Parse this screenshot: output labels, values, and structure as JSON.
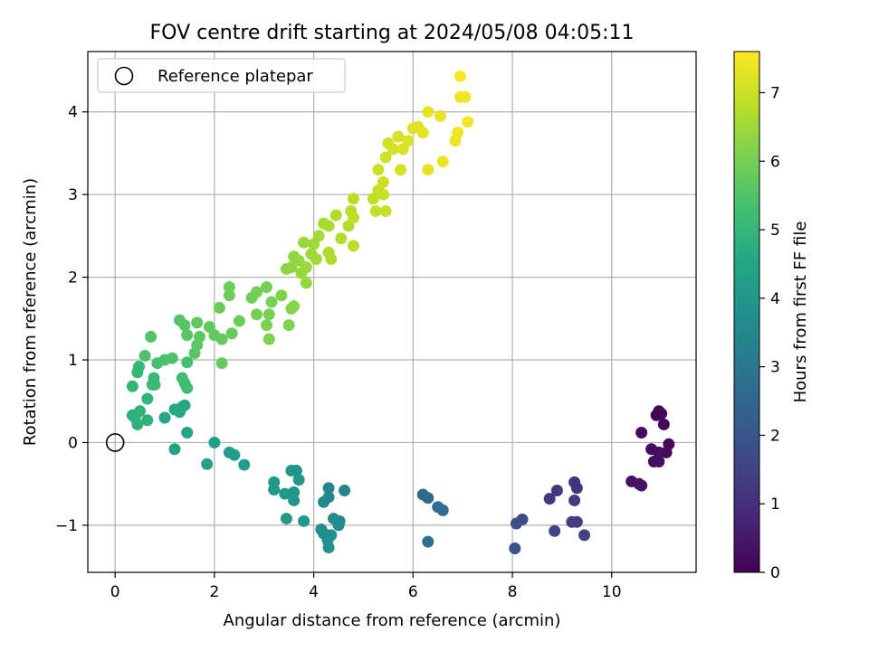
{
  "chart_data": {
    "type": "scatter",
    "title": "FOV centre drift starting at 2024/05/08 04:05:11",
    "xlabel": "Angular distance from reference (arcmin)",
    "ylabel": "Rotation from reference (arcmin)",
    "xlim": [
      -0.55,
      11.7
    ],
    "ylim": [
      -1.57,
      4.73
    ],
    "xticks": [
      0,
      2,
      4,
      6,
      8,
      10
    ],
    "yticks": [
      -1,
      0,
      1,
      2,
      3,
      4
    ],
    "grid": true,
    "legend": {
      "location": "upper-left",
      "entries": [
        {
          "label": "Reference platepar",
          "marker": "open-circle",
          "x": 0,
          "y": 0
        }
      ]
    },
    "colorbar": {
      "label": "Hours from first FF file",
      "colormap": "viridis",
      "range": [
        0,
        7.6
      ],
      "ticks": [
        0,
        1,
        2,
        3,
        4,
        5,
        6,
        7
      ]
    },
    "series": [
      {
        "marker": "filled-circle",
        "color_by": "hours",
        "columns": [
          "x",
          "y",
          "hours"
        ],
        "points": [
          [
            10.95,
            0.38,
            0.05
          ],
          [
            10.9,
            0.33,
            0.07
          ],
          [
            11.0,
            0.35,
            0.1
          ],
          [
            11.05,
            0.22,
            0.12
          ],
          [
            10.6,
            0.12,
            0.15
          ],
          [
            11.15,
            -0.02,
            0.17
          ],
          [
            11.1,
            -0.12,
            0.2
          ],
          [
            10.8,
            -0.08,
            0.22
          ],
          [
            10.95,
            -0.12,
            0.25
          ],
          [
            10.85,
            -0.23,
            0.27
          ],
          [
            10.95,
            -0.23,
            0.3
          ],
          [
            10.4,
            -0.47,
            0.35
          ],
          [
            10.55,
            -0.5,
            0.37
          ],
          [
            10.6,
            -0.52,
            0.4
          ],
          [
            9.25,
            -0.48,
            1.1
          ],
          [
            9.3,
            -0.55,
            1.15
          ],
          [
            8.9,
            -0.58,
            1.2
          ],
          [
            8.75,
            -0.68,
            1.25
          ],
          [
            9.25,
            -0.7,
            1.3
          ],
          [
            9.2,
            -0.96,
            1.35
          ],
          [
            9.3,
            -0.96,
            1.4
          ],
          [
            9.45,
            -1.12,
            1.45
          ],
          [
            8.85,
            -1.07,
            1.5
          ],
          [
            8.2,
            -0.93,
            1.75
          ],
          [
            8.08,
            -0.98,
            1.8
          ],
          [
            8.05,
            -1.28,
            1.85
          ],
          [
            6.2,
            -0.63,
            2.6
          ],
          [
            6.3,
            -0.67,
            2.65
          ],
          [
            6.5,
            -0.78,
            2.7
          ],
          [
            6.6,
            -0.82,
            2.75
          ],
          [
            6.3,
            -1.2,
            2.8
          ],
          [
            4.62,
            -0.58,
            3.4
          ],
          [
            4.3,
            -0.55,
            3.45
          ],
          [
            4.3,
            -0.66,
            3.5
          ],
          [
            4.2,
            -0.72,
            3.55
          ],
          [
            4.4,
            -0.92,
            3.6
          ],
          [
            4.52,
            -0.95,
            3.62
          ],
          [
            4.5,
            -1.0,
            3.65
          ],
          [
            4.15,
            -1.05,
            3.7
          ],
          [
            4.2,
            -1.1,
            3.72
          ],
          [
            4.35,
            -1.12,
            3.75
          ],
          [
            4.28,
            -1.18,
            3.77
          ],
          [
            4.3,
            -1.27,
            3.8
          ],
          [
            3.65,
            -0.34,
            3.9
          ],
          [
            3.55,
            -0.34,
            3.92
          ],
          [
            3.7,
            -0.45,
            3.95
          ],
          [
            3.6,
            -0.6,
            3.97
          ],
          [
            3.42,
            -0.62,
            4.0
          ],
          [
            3.6,
            -0.7,
            4.02
          ],
          [
            3.2,
            -0.48,
            4.05
          ],
          [
            3.2,
            -0.57,
            4.07
          ],
          [
            3.45,
            -0.92,
            4.1
          ],
          [
            3.8,
            -0.95,
            4.12
          ],
          [
            2.3,
            -0.12,
            4.2
          ],
          [
            2.4,
            -0.15,
            4.22
          ],
          [
            2.6,
            -0.27,
            4.25
          ],
          [
            2.0,
            0.0,
            4.3
          ],
          [
            1.85,
            -0.26,
            4.32
          ],
          [
            1.2,
            -0.08,
            4.4
          ],
          [
            1.45,
            0.12,
            4.45
          ],
          [
            1.0,
            0.3,
            4.5
          ],
          [
            1.4,
            0.45,
            4.55
          ],
          [
            1.35,
            0.43,
            4.57
          ],
          [
            1.2,
            0.4,
            4.6
          ],
          [
            1.3,
            0.37,
            4.62
          ],
          [
            0.4,
            0.3,
            4.8
          ],
          [
            0.35,
            0.33,
            4.82
          ],
          [
            0.5,
            0.38,
            4.85
          ],
          [
            0.45,
            0.22,
            4.87
          ],
          [
            0.65,
            0.27,
            4.9
          ],
          [
            0.65,
            0.53,
            4.95
          ],
          [
            0.35,
            0.68,
            5.0
          ],
          [
            0.45,
            0.85,
            5.05
          ],
          [
            0.48,
            0.92,
            5.07
          ],
          [
            0.75,
            0.7,
            5.1
          ],
          [
            0.78,
            0.78,
            5.12
          ],
          [
            0.8,
            0.7,
            5.15
          ],
          [
            1.45,
            0.66,
            5.2
          ],
          [
            1.4,
            0.72,
            5.22
          ],
          [
            1.35,
            0.78,
            5.25
          ],
          [
            1.45,
            0.97,
            5.3
          ],
          [
            0.85,
            0.96,
            5.35
          ],
          [
            1.0,
            1.0,
            5.37
          ],
          [
            1.15,
            1.02,
            5.4
          ],
          [
            0.6,
            1.05,
            5.45
          ],
          [
            0.72,
            1.28,
            5.5
          ],
          [
            1.3,
            1.48,
            5.55
          ],
          [
            1.4,
            1.42,
            5.57
          ],
          [
            1.45,
            1.3,
            5.6
          ],
          [
            1.6,
            1.08,
            5.62
          ],
          [
            1.65,
            1.18,
            5.65
          ],
          [
            1.7,
            1.28,
            5.67
          ],
          [
            1.65,
            1.45,
            5.7
          ],
          [
            1.9,
            1.4,
            5.72
          ],
          [
            2.0,
            1.3,
            5.75
          ],
          [
            2.15,
            1.25,
            5.77
          ],
          [
            2.15,
            0.96,
            5.8
          ],
          [
            2.35,
            1.32,
            5.82
          ],
          [
            2.5,
            1.47,
            5.85
          ],
          [
            2.1,
            1.63,
            5.87
          ],
          [
            2.3,
            1.78,
            5.9
          ],
          [
            2.3,
            1.88,
            5.92
          ],
          [
            2.75,
            1.75,
            5.95
          ],
          [
            2.85,
            1.82,
            5.97
          ],
          [
            2.85,
            1.55,
            6.0
          ],
          [
            3.05,
            1.88,
            6.02
          ],
          [
            3.1,
            1.55,
            6.05
          ],
          [
            3.15,
            1.7,
            6.07
          ],
          [
            3.05,
            1.42,
            6.1
          ],
          [
            3.1,
            1.25,
            6.12
          ],
          [
            3.35,
            1.78,
            6.15
          ],
          [
            3.5,
            1.42,
            6.17
          ],
          [
            3.55,
            1.62,
            6.2
          ],
          [
            3.6,
            1.65,
            6.22
          ],
          [
            3.45,
            2.1,
            6.3
          ],
          [
            3.55,
            2.12,
            6.32
          ],
          [
            3.6,
            2.25,
            6.35
          ],
          [
            3.7,
            2.2,
            6.37
          ],
          [
            3.75,
            2.05,
            6.4
          ],
          [
            3.85,
            1.93,
            6.42
          ],
          [
            3.85,
            2.12,
            6.45
          ],
          [
            3.8,
            2.42,
            6.47
          ],
          [
            3.95,
            2.28,
            6.5
          ],
          [
            4.0,
            2.4,
            6.52
          ],
          [
            4.05,
            2.22,
            6.55
          ],
          [
            4.1,
            2.5,
            6.57
          ],
          [
            4.2,
            2.65,
            6.6
          ],
          [
            4.3,
            2.62,
            6.62
          ],
          [
            4.35,
            2.22,
            6.65
          ],
          [
            4.3,
            2.3,
            6.67
          ],
          [
            4.45,
            2.75,
            6.7
          ],
          [
            4.55,
            2.47,
            6.72
          ],
          [
            4.7,
            2.62,
            6.75
          ],
          [
            4.75,
            2.8,
            6.77
          ],
          [
            4.8,
            2.95,
            6.8
          ],
          [
            4.8,
            2.38,
            6.82
          ],
          [
            4.8,
            2.72,
            6.85
          ],
          [
            5.2,
            2.95,
            6.87
          ],
          [
            5.25,
            2.8,
            6.9
          ],
          [
            5.3,
            3.05,
            6.92
          ],
          [
            5.4,
            3.0,
            6.95
          ],
          [
            5.45,
            2.8,
            6.97
          ],
          [
            5.3,
            3.3,
            7.0
          ],
          [
            5.4,
            3.15,
            7.02
          ],
          [
            5.45,
            3.45,
            7.05
          ],
          [
            5.5,
            3.62,
            7.07
          ],
          [
            5.6,
            3.55,
            7.1
          ],
          [
            5.7,
            3.7,
            7.12
          ],
          [
            5.75,
            3.3,
            7.15
          ],
          [
            5.8,
            3.55,
            7.17
          ],
          [
            5.9,
            3.65,
            7.2
          ],
          [
            6.0,
            3.8,
            7.22
          ],
          [
            6.1,
            3.82,
            7.25
          ],
          [
            6.2,
            3.75,
            7.27
          ],
          [
            6.3,
            3.3,
            7.3
          ],
          [
            6.3,
            4.0,
            7.32
          ],
          [
            6.55,
            3.95,
            7.35
          ],
          [
            6.6,
            3.4,
            7.37
          ],
          [
            6.85,
            3.65,
            7.4
          ],
          [
            6.9,
            3.75,
            7.42
          ],
          [
            6.95,
            4.18,
            7.45
          ],
          [
            7.05,
            4.18,
            7.47
          ],
          [
            7.1,
            3.88,
            7.5
          ],
          [
            6.95,
            4.43,
            7.55
          ]
        ]
      }
    ]
  }
}
